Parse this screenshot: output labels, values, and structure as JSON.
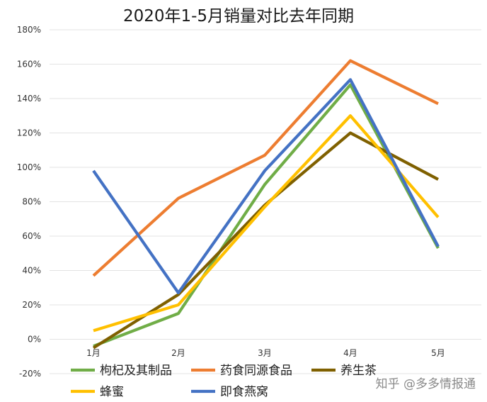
{
  "watermark": "知乎 @多多情报通",
  "chart_data": {
    "type": "line",
    "title": "2020年1-5月销量对比去年同期",
    "xlabel": "",
    "ylabel": "",
    "categories": [
      "1月",
      "2月",
      "3月",
      "4月",
      "5月"
    ],
    "ylim": [
      -20,
      180
    ],
    "yticks": [
      -20,
      0,
      20,
      40,
      60,
      80,
      100,
      120,
      140,
      160,
      180
    ],
    "ytick_labels": [
      "-20%",
      "0%",
      "20%",
      "40%",
      "60%",
      "80%",
      "100%",
      "120%",
      "140%",
      "160%",
      "180%"
    ],
    "grid": true,
    "legend_position": "bottom",
    "series": [
      {
        "name": "枸杞及其制品",
        "color": "#70ad47",
        "values": [
          -4,
          15,
          90,
          148,
          53
        ]
      },
      {
        "name": "药食同源食品",
        "color": "#ed7d31",
        "values": [
          37,
          82,
          107,
          162,
          137
        ]
      },
      {
        "name": "养生茶",
        "color": "#7f6000",
        "values": [
          -5,
          26,
          78,
          120,
          93
        ]
      },
      {
        "name": "蜂蜜",
        "color": "#ffc000",
        "values": [
          5,
          20,
          77,
          130,
          71
        ]
      },
      {
        "name": "即食燕窝",
        "color": "#4472c4",
        "values": [
          98,
          27,
          98,
          151,
          54
        ]
      }
    ]
  }
}
